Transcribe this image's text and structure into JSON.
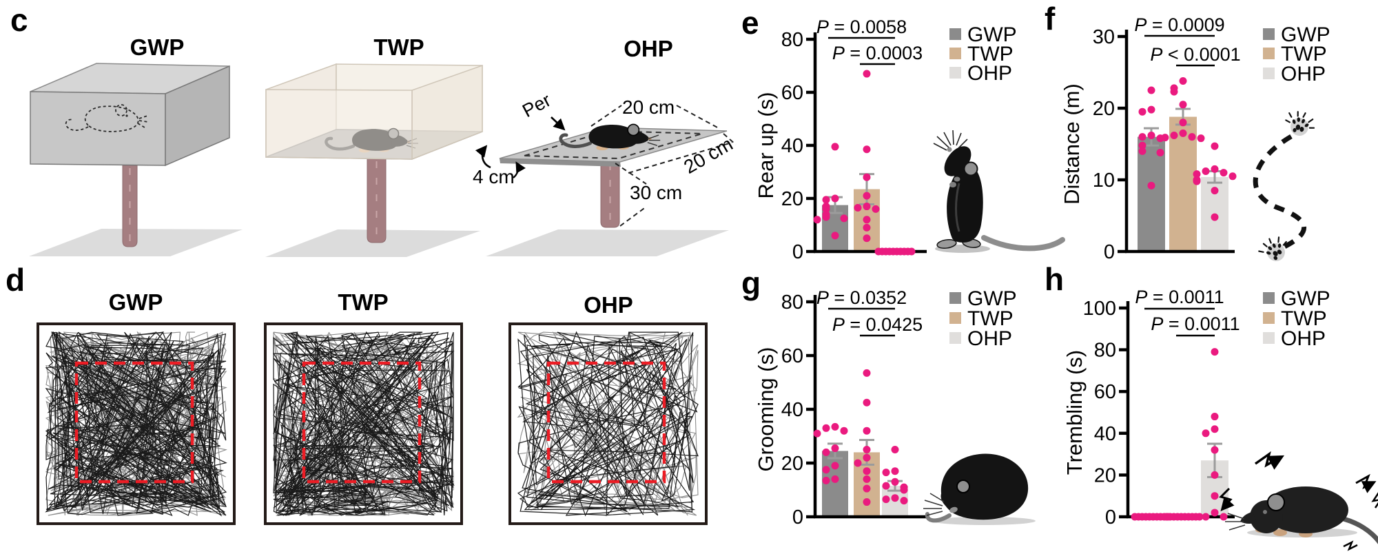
{
  "panel_labels": {
    "c": "c",
    "d": "d",
    "e": "e",
    "f": "f",
    "g": "g",
    "h": "h"
  },
  "apparatus": {
    "items": [
      {
        "id": "gwp",
        "title": "GWP"
      },
      {
        "id": "twp",
        "title": "TWP"
      },
      {
        "id": "ohp",
        "title": "OHP"
      }
    ],
    "ohp_annotations": {
      "perimeter_label": "Per",
      "width_label": "20 cm",
      "depth_label": "20 cm",
      "wall_height_label": "4 cm",
      "pole_height_label": "30 cm"
    }
  },
  "trajectory_panels": {
    "titles": [
      "GWP",
      "TWP",
      "OHP"
    ]
  },
  "chart_data": [
    {
      "id": "e",
      "type": "bar",
      "title": "",
      "xlabel": "",
      "ylabel": "Rear up (s)",
      "ylim": [
        0,
        80
      ],
      "yticks": [
        0,
        20,
        40,
        60,
        80
      ],
      "categories": [
        "GWP",
        "TWP",
        "OHP"
      ],
      "means": [
        17.5,
        23.5,
        0
      ],
      "sem": [
        3.0,
        5.7,
        0
      ],
      "points": [
        [
          39.5,
          20,
          19.5,
          17,
          16,
          14,
          13,
          12.5,
          12,
          6
        ],
        [
          67,
          38.5,
          28,
          21,
          17,
          16.5,
          16,
          12,
          9,
          5
        ],
        [
          0,
          0,
          0,
          0,
          0,
          0,
          0,
          0,
          0,
          0
        ]
      ],
      "pvalues": [
        {
          "label": "P = 0.0058",
          "from": 0,
          "to": 2
        },
        {
          "label": "P = 0.0003",
          "from": 1,
          "to": 2
        }
      ],
      "legend": [
        "GWP",
        "TWP",
        "OHP"
      ],
      "legend_position": "right",
      "grid": false
    },
    {
      "id": "f",
      "type": "bar",
      "title": "",
      "xlabel": "",
      "ylabel": "Distance (m)",
      "ylim": [
        0,
        30
      ],
      "yticks": [
        0,
        10,
        20,
        30
      ],
      "categories": [
        "GWP",
        "TWP",
        "OHP"
      ],
      "means": [
        16,
        18.8,
        10.4
      ],
      "sem": [
        1.2,
        1.1,
        0.8
      ],
      "points": [
        [
          22.5,
          19.8,
          19.5,
          16.2,
          16,
          15.8,
          14.8,
          14,
          13.8,
          9.2
        ],
        [
          23.8,
          22.8,
          22.3,
          20.5,
          18,
          16.5,
          16.2,
          16,
          15.9,
          15.8
        ],
        [
          14.7,
          11.5,
          11.2,
          11,
          10.8,
          10.5,
          10,
          9.8,
          8.5,
          4.8
        ]
      ],
      "pvalues": [
        {
          "label": "P = 0.0009",
          "from": 0,
          "to": 2
        },
        {
          "label": "P < 0.0001",
          "from": 1,
          "to": 2
        }
      ],
      "legend": [
        "GWP",
        "TWP",
        "OHP"
      ],
      "legend_position": "right",
      "grid": false
    },
    {
      "id": "g",
      "type": "bar",
      "title": "",
      "xlabel": "",
      "ylabel": "Grooming (s)",
      "ylim": [
        0,
        80
      ],
      "yticks": [
        0,
        20,
        40,
        60,
        80
      ],
      "categories": [
        "GWP",
        "TWP",
        "OHP"
      ],
      "means": [
        24.5,
        24,
        11.5
      ],
      "sem": [
        2.7,
        4.6,
        1.8
      ],
      "points": [
        [
          33.5,
          33,
          32,
          31,
          25.5,
          24,
          19,
          17.5,
          14,
          13.5
        ],
        [
          53.5,
          42.5,
          32,
          25,
          22,
          20,
          17,
          14,
          10.5,
          5.5
        ],
        [
          25,
          17,
          16.5,
          13,
          11.5,
          11,
          10,
          7,
          6.5,
          6
        ]
      ],
      "pvalues": [
        {
          "label": "P = 0.0352",
          "from": 0,
          "to": 2
        },
        {
          "label": "P = 0.0425",
          "from": 1,
          "to": 2
        }
      ],
      "legend": [
        "GWP",
        "TWP",
        "OHP"
      ],
      "legend_position": "right",
      "grid": false
    },
    {
      "id": "h",
      "type": "bar",
      "title": "",
      "xlabel": "",
      "ylabel": "Trembling (s)",
      "ylim": [
        0,
        100
      ],
      "yticks": [
        0,
        20,
        40,
        60,
        80,
        100
      ],
      "categories": [
        "GWP",
        "TWP",
        "OHP"
      ],
      "means": [
        0,
        0,
        27
      ],
      "sem": [
        0,
        0,
        8
      ],
      "points": [
        [
          0,
          0,
          0,
          0,
          0,
          0,
          0,
          0,
          0,
          0
        ],
        [
          0,
          0,
          0,
          0,
          0,
          0,
          0,
          0,
          0,
          0
        ],
        [
          79,
          48,
          42,
          40,
          32,
          20,
          10,
          2,
          0,
          0
        ]
      ],
      "pvalues": [
        {
          "label": "P = 0.0011",
          "from": 0,
          "to": 2
        },
        {
          "label": "P = 0.0011",
          "from": 1,
          "to": 2
        }
      ],
      "legend": [
        "GWP",
        "TWP",
        "OHP"
      ],
      "legend_position": "right",
      "grid": false
    }
  ],
  "colors": {
    "gwp_bar": "#8b8b8b",
    "twp_bar": "#d1b290",
    "ohp_bar": "#e0dedc",
    "data_dot": "#ea1a7f",
    "error_bar": "#9b9b9b",
    "axis": "#000000",
    "red_zone": "#ec1d25",
    "trajectory_black": "#1a1a1a",
    "trajectory_gray": "#8b8b8b",
    "pole": "#a57e81",
    "box_gray_wall": "#c7c7c7",
    "box_transparent_wall": "#f4efe7"
  }
}
